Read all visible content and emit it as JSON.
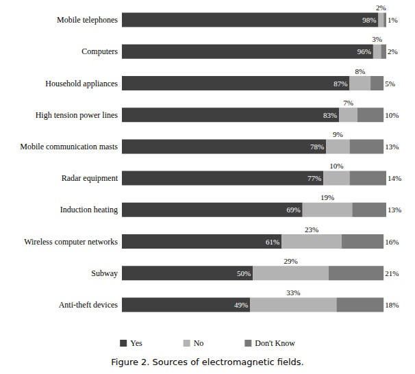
{
  "chart_data": {
    "type": "bar",
    "orientation": "horizontal",
    "stacked": true,
    "title": "Figure 2. Sources of electromagnetic fields.",
    "categories": [
      "Mobile telephones",
      "Computers",
      "Household appliances",
      "High tension power lines",
      "Mobile communication masts",
      "Radar equipment",
      "Induction heating",
      "Wireless computer networks",
      "Subway",
      "Anti-theft devices"
    ],
    "series": [
      {
        "name": "Yes",
        "color": "#3f3f3f",
        "values": [
          98,
          96,
          87,
          83,
          78,
          77,
          69,
          61,
          50,
          49
        ],
        "value_labels": [
          "98%",
          "96%",
          "87%",
          "83%",
          "78%",
          "77%",
          "69%",
          "61%",
          "50%",
          "49%"
        ]
      },
      {
        "name": "No",
        "color": "#b3b3b3",
        "values": [
          2,
          3,
          8,
          7,
          9,
          10,
          19,
          23,
          29,
          33
        ],
        "value_labels": [
          "2%",
          "3%",
          "8%",
          "7%",
          "9%",
          "10%",
          "19%",
          "23%",
          "29%",
          "33%"
        ]
      },
      {
        "name": "Don't Know",
        "color": "#7a7a7a",
        "values": [
          1,
          2,
          5,
          10,
          13,
          14,
          13,
          16,
          21,
          18
        ],
        "value_labels": [
          "1%",
          "2%",
          "5%",
          "10%",
          "13%",
          "14%",
          "13%",
          "16%",
          "21%",
          "18%"
        ]
      }
    ],
    "xlim": [
      0,
      101
    ],
    "grid": false,
    "legend": "bottom",
    "data_labels": true,
    "tick_labels": "y"
  }
}
